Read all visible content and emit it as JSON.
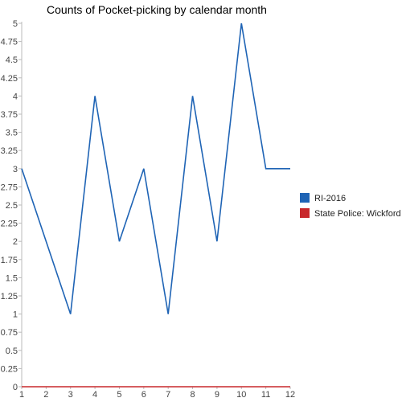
{
  "chart_data": {
    "type": "line",
    "title": "Counts of Pocket-picking by calendar month",
    "xlabel": "",
    "ylabel": "",
    "x": [
      1,
      2,
      3,
      4,
      5,
      6,
      7,
      8,
      9,
      10,
      11,
      12
    ],
    "ylim": [
      0,
      5
    ],
    "y_ticks": [
      "0",
      "0.25",
      "0.5",
      "0.75",
      "1",
      "1.25",
      "1.5",
      "1.75",
      "2",
      "2.25",
      "2.5",
      "2.75",
      "3",
      "3.25",
      "3.5",
      "3.75",
      "4",
      "4.25",
      "4.5",
      "4.75",
      "5"
    ],
    "x_ticks": [
      "1",
      "2",
      "3",
      "4",
      "5",
      "6",
      "7",
      "8",
      "9",
      "10",
      "11",
      "12"
    ],
    "series": [
      {
        "name": "RI-2016",
        "color": "#1f64b5",
        "values": [
          3,
          2,
          1,
          4,
          2,
          3,
          1,
          4,
          2,
          5,
          3,
          3
        ]
      },
      {
        "name": "State Police: Wickford",
        "color": "#c8282b",
        "values": [
          0,
          0,
          0,
          0,
          0,
          0,
          0,
          0,
          0,
          0,
          0,
          0
        ]
      }
    ],
    "grid": false,
    "legend": "right"
  }
}
